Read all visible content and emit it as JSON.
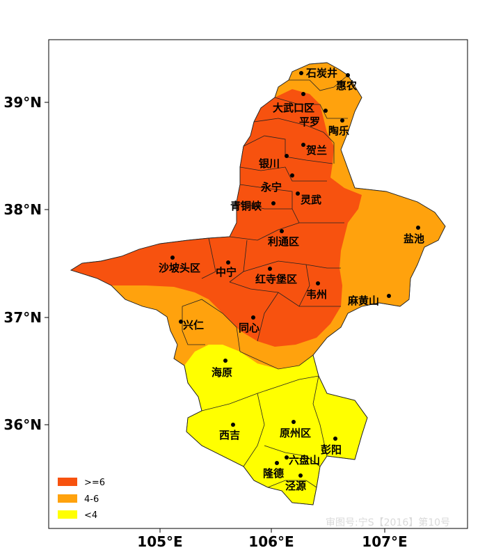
{
  "map": {
    "x_ticks": [
      "105°E",
      "106°E",
      "107°E"
    ],
    "y_ticks": [
      "39°N",
      "38°N",
      "37°N",
      "36°N"
    ],
    "legend": [
      {
        "label": ">=6",
        "color": "#f7520f"
      },
      {
        "label": "4-6",
        "color": "#ffa20d"
      },
      {
        "label": "<4",
        "color": "#ffff00"
      }
    ],
    "colors": {
      "high": "#f7520f",
      "mid": "#ffa20d",
      "low": "#ffff00"
    },
    "watermark": "审图号:宁S【2016】第10号",
    "cities": [
      {
        "name": "石炭井"
      },
      {
        "name": "惠农"
      },
      {
        "name": "大武口区"
      },
      {
        "name": "平罗"
      },
      {
        "name": "陶乐"
      },
      {
        "name": "贺兰"
      },
      {
        "name": "银川"
      },
      {
        "name": "永宁"
      },
      {
        "name": "灵武"
      },
      {
        "name": "青铜峡"
      },
      {
        "name": "盐池"
      },
      {
        "name": "利通区"
      },
      {
        "name": "沙坡头区"
      },
      {
        "name": "中宁"
      },
      {
        "name": "红寺堡区"
      },
      {
        "name": "韦州"
      },
      {
        "name": "麻黄山"
      },
      {
        "name": "兴仁"
      },
      {
        "name": "同心"
      },
      {
        "name": "海原"
      },
      {
        "name": "西吉"
      },
      {
        "name": "原州区"
      },
      {
        "name": "彭阳"
      },
      {
        "name": "六盘山"
      },
      {
        "name": "隆德"
      },
      {
        "name": "泾源"
      }
    ]
  }
}
